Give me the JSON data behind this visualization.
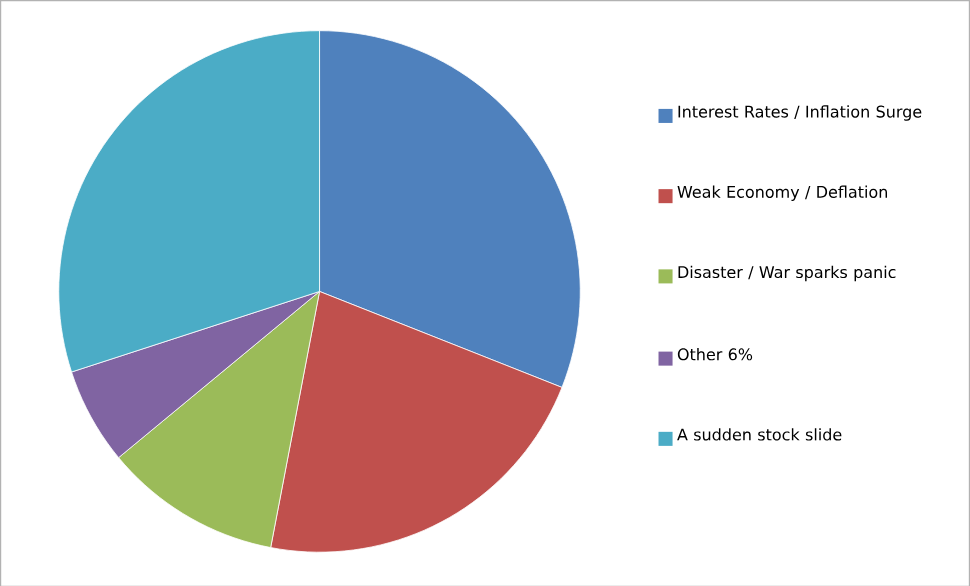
{
  "chart_data": {
    "type": "pie",
    "categories": [
      "Interest Rates / Inflation Surge",
      "Weak Economy / Deflation",
      "Disaster / War sparks panic",
      "Other 6%",
      "A sudden stock slide"
    ],
    "values": [
      31,
      22,
      11,
      6,
      30
    ],
    "colors": [
      "#4f81bd",
      "#c0504d",
      "#9bbb59",
      "#8064a2",
      "#4bacc6"
    ],
    "legend": "right"
  }
}
